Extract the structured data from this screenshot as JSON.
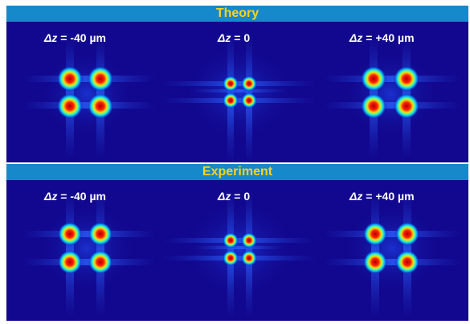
{
  "sections": [
    {
      "title": "Theory",
      "panels": [
        {
          "symbol": "Δz",
          "value": " = -40 µm",
          "focus": "defocused"
        },
        {
          "symbol": "Δz",
          "value": " = 0",
          "focus": "focused"
        },
        {
          "symbol": "Δz",
          "value": " = +40 µm",
          "focus": "defocused"
        }
      ]
    },
    {
      "title": "Experiment",
      "panels": [
        {
          "symbol": "Δz",
          "value": " = -40 µm",
          "focus": "defocused"
        },
        {
          "symbol": "Δz",
          "value": " = 0",
          "focus": "focused"
        },
        {
          "symbol": "Δz",
          "value": " = +40 µm",
          "focus": "defocused"
        }
      ]
    }
  ],
  "colors": {
    "header_bg": "#1589c9",
    "header_text": "#ffd21a",
    "panel_bg": "#12088f",
    "label_text": "#ffffff"
  }
}
